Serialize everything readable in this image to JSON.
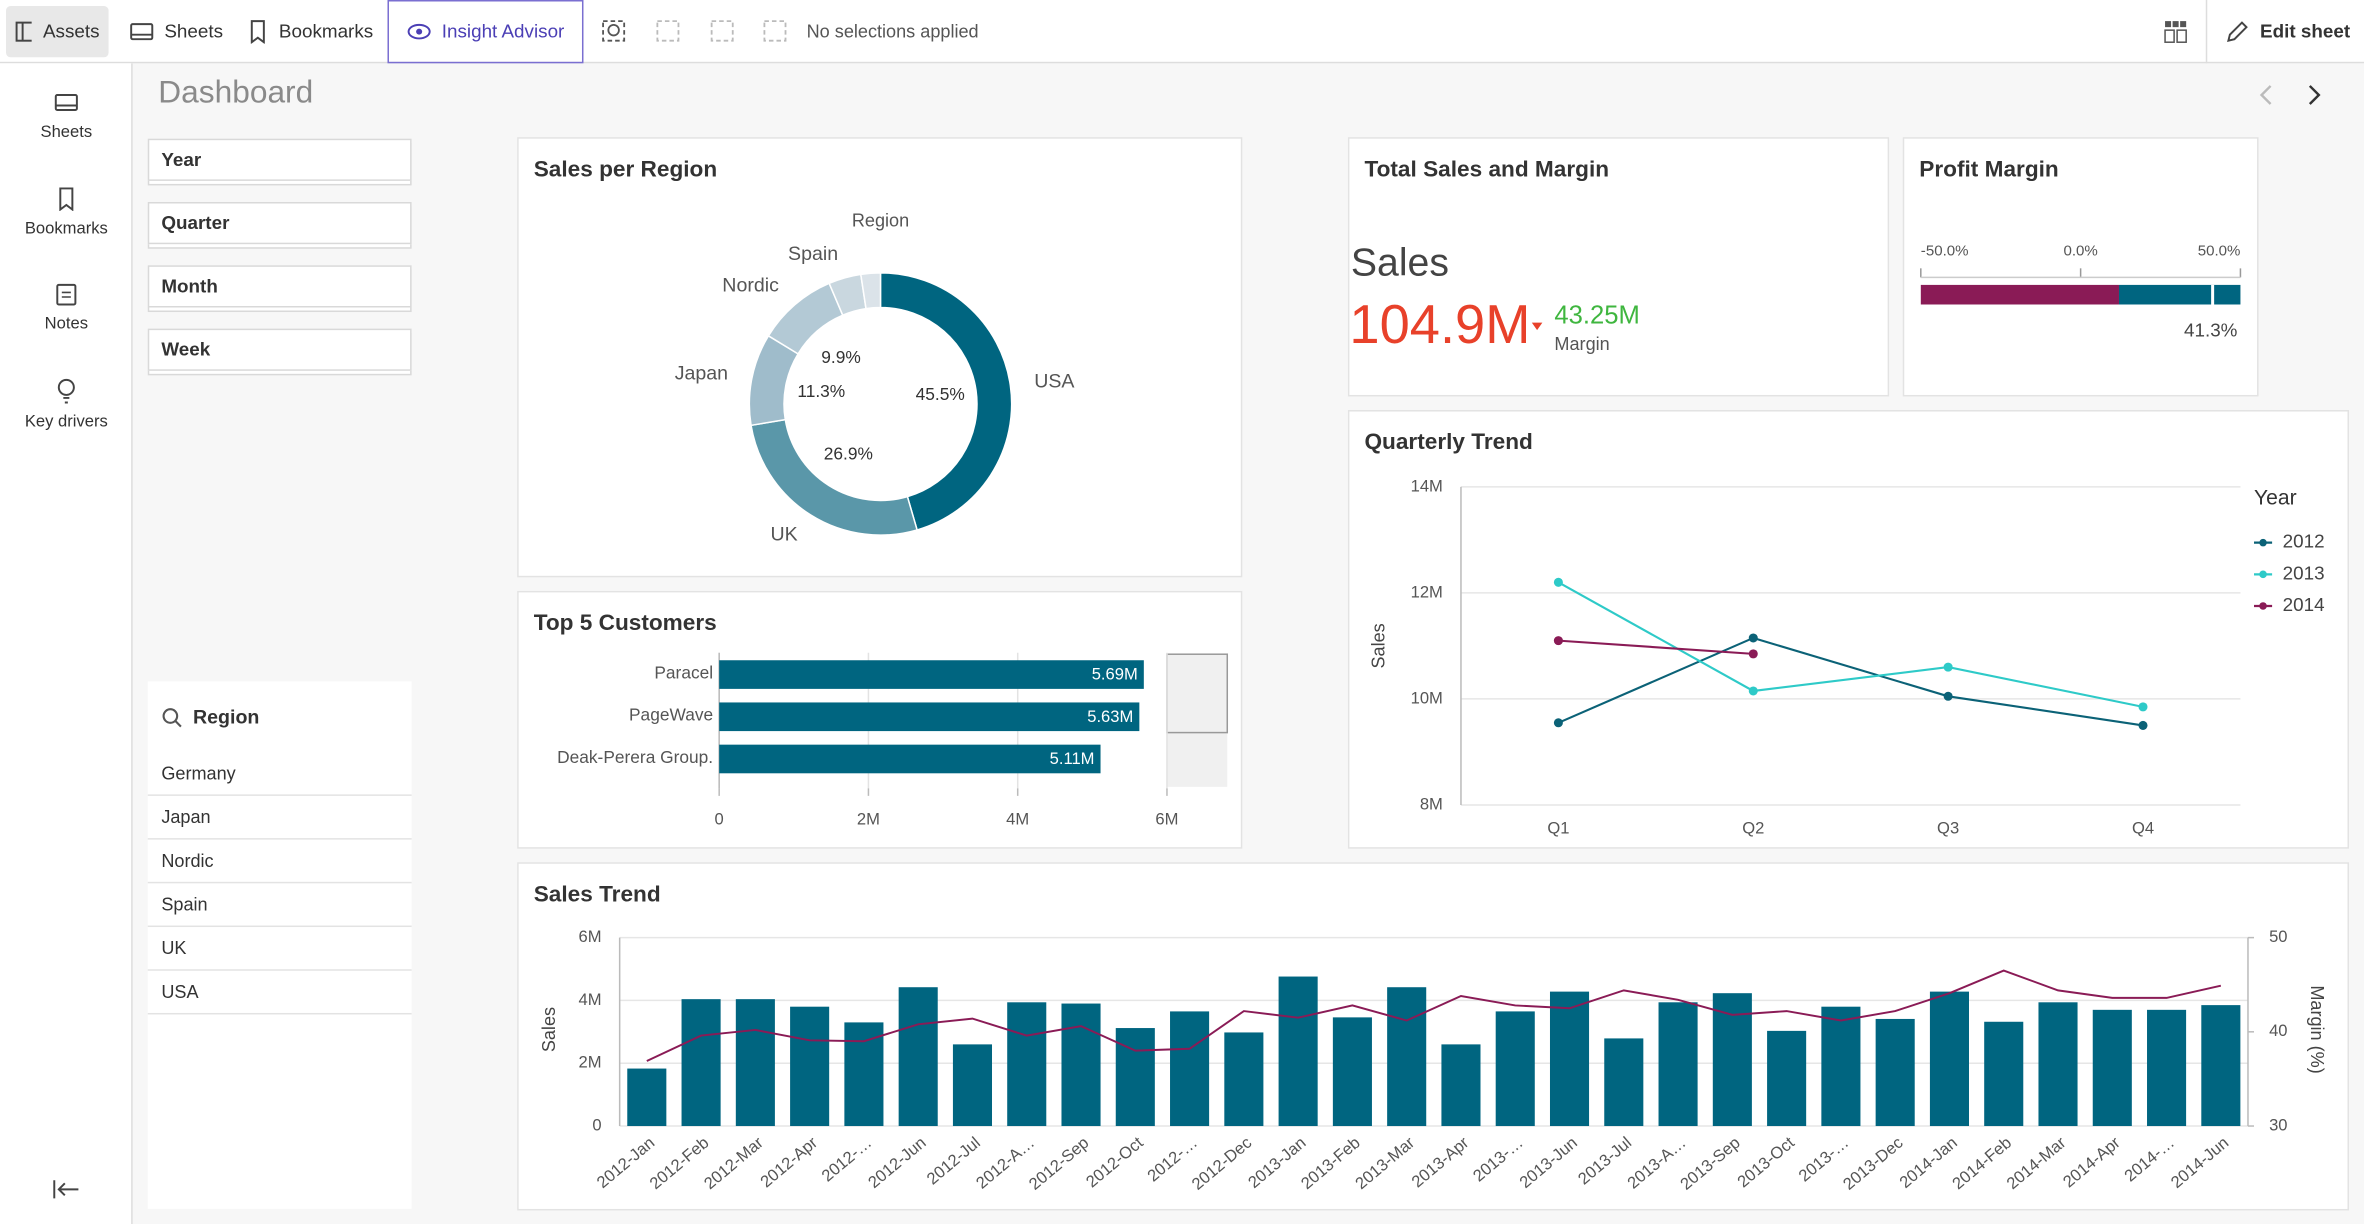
{
  "toolbar": {
    "tabs": [
      "Assets",
      "Sheets",
      "Bookmarks",
      "Insight Advisor"
    ],
    "selections": "No selections applied",
    "edit_button": "Edit sheet"
  },
  "sidebar": {
    "items": [
      "Sheets",
      "Bookmarks",
      "Notes",
      "Key drivers"
    ]
  },
  "sheet_title": "Dashboard",
  "filters": [
    "Year",
    "Quarter",
    "Month",
    "Week"
  ],
  "region_list": {
    "title": "Region",
    "items": [
      "Germany",
      "Japan",
      "Nordic",
      "Spain",
      "UK",
      "USA"
    ]
  },
  "chart_data": [
    {
      "type": "pie",
      "title": "Sales per Region",
      "legend_title": "Region",
      "categories": [
        "USA",
        "UK",
        "Japan",
        "Nordic",
        "Spain",
        null
      ],
      "values": [
        45.5,
        26.9,
        11.3,
        9.9,
        4.0,
        2.4
      ],
      "value_labels": [
        "45.5%",
        "26.9%",
        "11.3%",
        "9.9%",
        null,
        null
      ],
      "colors": [
        "#006580",
        "#5a97a9",
        "#9fbccb",
        "#b3c9d5",
        "#c9d7df",
        "#dbe3e9"
      ]
    },
    {
      "type": "hbar",
      "title": "Top 5 Customers",
      "categories": [
        "Paracel",
        "PageWave",
        "Deak-Perera Group."
      ],
      "values": [
        5690000,
        5630000,
        5110000
      ],
      "value_labels": [
        "5.69M",
        "5.63M",
        "5.11M"
      ],
      "color": "#006580",
      "xlim": [
        0,
        6000000
      ],
      "xticks": [
        0,
        {
          "value": 2000000,
          "label": "2M"
        },
        {
          "value": 4000000,
          "label": "4M"
        },
        {
          "value": 6000000,
          "label": "6M"
        }
      ],
      "grid": true
    },
    {
      "type": "kpi",
      "title": "Total Sales and Margin",
      "label": "Sales",
      "value": "104.9M",
      "value_color": "#e8412a",
      "secondary_value": "43.25M",
      "secondary_name": "Margin",
      "secondary_color": "#3fb63f"
    },
    {
      "type": "gauge",
      "title": "Profit Margin",
      "xlim": [
        -50,
        50
      ],
      "xticks": [
        {
          "value": -50,
          "label": "-50.0%"
        },
        {
          "value": 0,
          "label": "0.0%"
        },
        {
          "value": 50,
          "label": "50.0%"
        }
      ],
      "value": 41.3,
      "value_label": "41.3%",
      "ranges": [
        {
          "to": 12,
          "color": "#8a1b56"
        },
        {
          "to": 50,
          "color": "#006580"
        }
      ]
    },
    {
      "type": "line",
      "title": "Quarterly Trend",
      "ylabel": "Sales",
      "legend_title": "Year",
      "legend": "right",
      "categories": [
        "Q1",
        "Q2",
        "Q3",
        "Q4"
      ],
      "series": [
        {
          "name": "2012",
          "color": "#0b6277",
          "values": [
            9550000,
            11150000,
            10050000,
            9500000
          ]
        },
        {
          "name": "2013",
          "color": "#2ecac8",
          "values": [
            12200000,
            10150000,
            10600000,
            9850000
          ]
        },
        {
          "name": "2014",
          "color": "#8a1b56",
          "values": [
            11100000,
            10850000,
            null,
            null
          ]
        }
      ],
      "ylim": [
        8000000,
        14000000
      ],
      "yticks": [
        {
          "value": 8000000,
          "label": "8M"
        },
        {
          "value": 10000000,
          "label": "10M"
        },
        {
          "value": 12000000,
          "label": "12M"
        },
        {
          "value": 14000000,
          "label": "14M"
        }
      ],
      "grid": true
    },
    {
      "type": "combo",
      "title": "Sales Trend",
      "ylabel": "Sales",
      "y2label": "Margin (%)",
      "categories": [
        "2012-Jan",
        "2012-Feb",
        "2012-Mar",
        "2012-Apr",
        "2012-…",
        "2012-Jun",
        "2012-Jul",
        "2012-A…",
        "2012-Sep",
        "2012-Oct",
        "2012-…",
        "2012-Dec",
        "2013-Jan",
        "2013-Feb",
        "2013-Mar",
        "2013-Apr",
        "2013-…",
        "2013-Jun",
        "2013-Jul",
        "2013-A…",
        "2013-Sep",
        "2013-Oct",
        "2013-…",
        "2013-Dec",
        "2014-Jan",
        "2014-Feb",
        "2014-Mar",
        "2014-Apr",
        "2014-…",
        "2014-Jun"
      ],
      "series": [
        {
          "type": "bar",
          "color": "#006580",
          "values": [
            1830000,
            4040000,
            4040000,
            3800000,
            3300000,
            4420000,
            2600000,
            3940000,
            3900000,
            3120000,
            3650000,
            2980000,
            4760000,
            3460000,
            4420000,
            2600000,
            3650000,
            4280000,
            2790000,
            3940000,
            4230000,
            3030000,
            3800000,
            3410000,
            4280000,
            3320000,
            3940000,
            3700000,
            3700000,
            3850000
          ]
        },
        {
          "type": "line",
          "color": "#8a1b56",
          "axis": "y2",
          "values": [
            36.9,
            39.6,
            40.2,
            39.1,
            39.0,
            40.8,
            41.4,
            39.6,
            40.6,
            38.0,
            38.2,
            42.2,
            41.5,
            42.8,
            41.2,
            43.8,
            42.8,
            42.5,
            44.4,
            43.4,
            41.8,
            42.2,
            41.2,
            42.2,
            44.1,
            46.5,
            44.4,
            43.6,
            43.6,
            44.9
          ]
        }
      ],
      "ylim": [
        0,
        6000000
      ],
      "yticks": [
        0,
        {
          "value": 2000000,
          "label": "2M"
        },
        {
          "value": 4000000,
          "label": "4M"
        },
        {
          "value": 6000000,
          "label": "6M"
        }
      ],
      "y2lim": [
        30,
        50
      ],
      "y2ticks": [
        30,
        40,
        50
      ],
      "grid": true
    }
  ]
}
